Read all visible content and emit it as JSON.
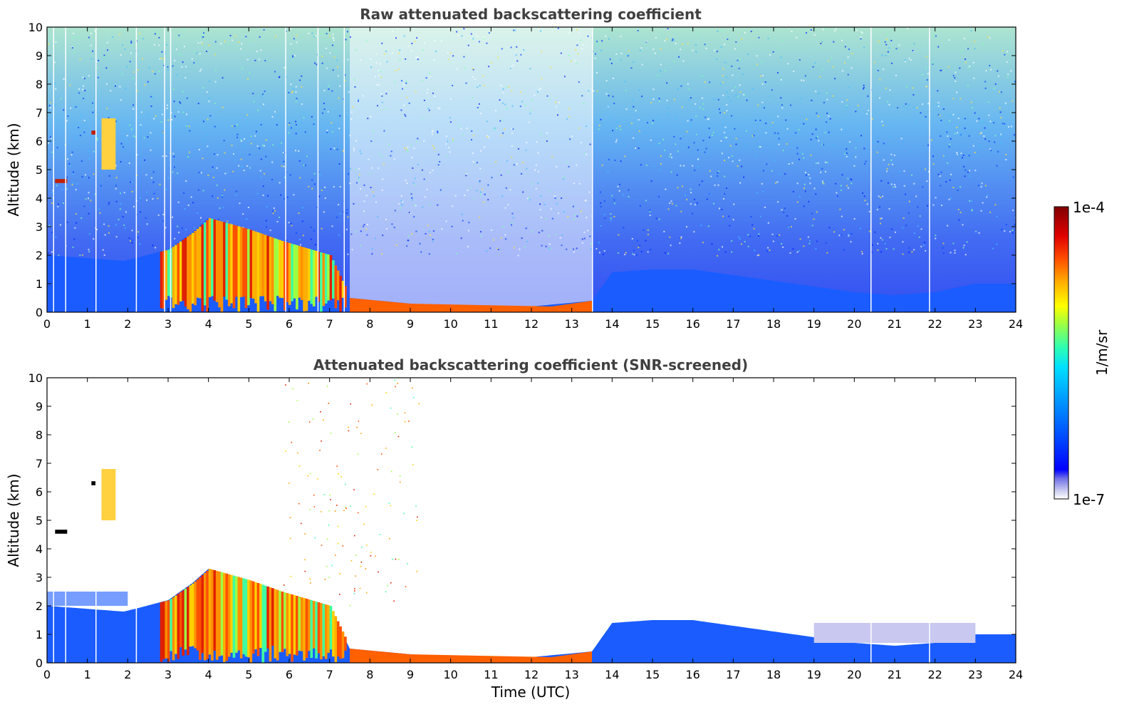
{
  "chart_data": [
    {
      "type": "heatmap",
      "title": "Raw attenuated backscattering coefficient",
      "xlabel": "",
      "ylabel": "Altitude (km)",
      "xlim": [
        0,
        24
      ],
      "ylim": [
        0,
        10
      ],
      "xticks": [
        "0",
        "1",
        "2",
        "3",
        "4",
        "5",
        "6",
        "7",
        "8",
        "9",
        "10",
        "11",
        "12",
        "13",
        "14",
        "15",
        "16",
        "17",
        "18",
        "19",
        "20",
        "21",
        "22",
        "23",
        "24"
      ],
      "yticks": [
        "0",
        "1",
        "2",
        "3",
        "4",
        "5",
        "6",
        "7",
        "8",
        "9",
        "10"
      ],
      "color_scale": "log",
      "features": {
        "boundary_layer_top_km": [
          [
            0,
            2.0
          ],
          [
            1.9,
            1.8
          ],
          [
            2.2,
            1.9
          ],
          [
            3.0,
            2.2
          ],
          [
            3.6,
            2.8
          ],
          [
            4.0,
            3.3
          ],
          [
            5.0,
            2.9
          ],
          [
            5.8,
            2.5
          ],
          [
            7.0,
            2.0
          ],
          [
            7.5,
            0.5
          ],
          [
            9.0,
            0.3
          ],
          [
            10.0,
            0.2
          ],
          [
            12.0,
            0.2
          ],
          [
            13.5,
            0.4
          ],
          [
            14.0,
            1.4
          ],
          [
            15.0,
            1.5
          ],
          [
            16.0,
            1.5
          ],
          [
            17.0,
            1.3
          ],
          [
            18.0,
            1.1
          ],
          [
            19.0,
            0.9
          ],
          [
            20.0,
            0.7
          ],
          [
            21.0,
            0.6
          ],
          [
            22.0,
            0.7
          ],
          [
            23.0,
            1.0
          ],
          [
            24.0,
            1.0
          ]
        ],
        "elevated_layers": [
          {
            "t_start": 0.2,
            "t_end": 0.5,
            "alt_km": 4.6
          },
          {
            "t_start": 1.35,
            "t_end": 1.7,
            "alt_low_km": 5.0,
            "alt_high_km": 6.8
          },
          {
            "t_start": 1.1,
            "t_end": 1.2,
            "alt_km": 6.3
          }
        ]
      }
    },
    {
      "type": "heatmap",
      "title": "Attenuated backscattering coefficient (SNR-screened)",
      "xlabel": "Time (UTC)",
      "ylabel": "Altitude (km)",
      "xlim": [
        0,
        24
      ],
      "ylim": [
        0,
        10
      ],
      "xticks": [
        "0",
        "1",
        "2",
        "3",
        "4",
        "5",
        "6",
        "7",
        "8",
        "9",
        "10",
        "11",
        "12",
        "13",
        "14",
        "15",
        "16",
        "17",
        "18",
        "19",
        "20",
        "21",
        "22",
        "23",
        "24"
      ],
      "yticks": [
        "0",
        "1",
        "2",
        "3",
        "4",
        "5",
        "6",
        "7",
        "8",
        "9",
        "10"
      ],
      "color_scale": "log"
    }
  ],
  "colorbar": {
    "max_label": "1e-4",
    "min_label": "1e-7",
    "label": "1/m/sr",
    "colors": [
      "#ffffff",
      "#c8c8f0",
      "#9090e8",
      "#0000ff",
      "#0040ff",
      "#0080ff",
      "#00c0ff",
      "#00ffe0",
      "#40ff80",
      "#c0ff00",
      "#ffff00",
      "#ffc000",
      "#ff8000",
      "#ff4000",
      "#e00000",
      "#800000"
    ]
  }
}
